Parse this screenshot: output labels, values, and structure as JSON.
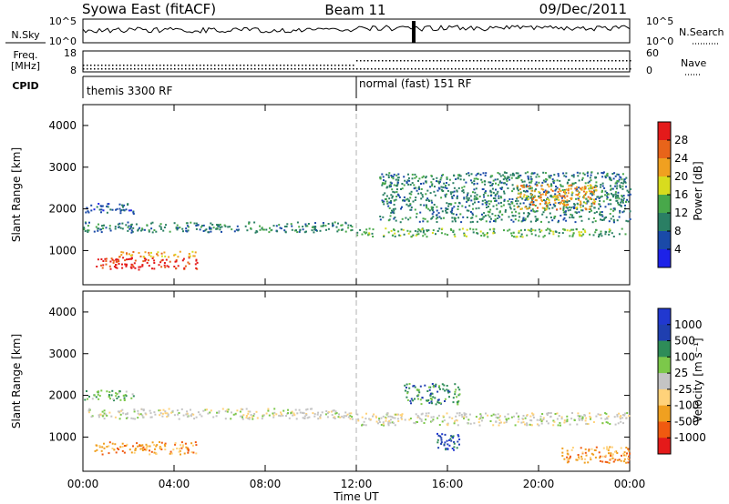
{
  "header": {
    "title": "Syowa East (fitACF)",
    "beam": "Beam 11",
    "date": "09/Dec/2011"
  },
  "status_panels": {
    "noise_left_label": "N.Sky",
    "noise_right_label": "N.Search",
    "noise_ticks_left": [
      "10^5",
      "10^0"
    ],
    "noise_ticks_right": [
      "10^5",
      "10^0"
    ],
    "freq_label_line1": "Freq.",
    "freq_label_line2": "[MHz]",
    "freq_ticks": [
      "18",
      "8"
    ],
    "nave_label": "Nave",
    "nave_ticks": [
      "60",
      "0"
    ],
    "cpid_label": "CPID",
    "cpid_modes": [
      {
        "name": "themis 3300 RF",
        "start_hour": 0
      },
      {
        "name": "normal (fast) 151 RF",
        "start_hour": 12
      }
    ]
  },
  "chart_data": [
    {
      "type": "heatmap",
      "title": "",
      "xlabel": "",
      "ylabel": "Slant Range [km]",
      "xlim": [
        0,
        24
      ],
      "ylim": [
        180,
        4500
      ],
      "x_ticks": [
        "00:00",
        "04:00",
        "08:00",
        "12:00",
        "16:00",
        "20:00",
        "00:00"
      ],
      "y_ticks": [
        "1000",
        "2000",
        "3000",
        "4000"
      ],
      "colorbar": {
        "label": "Power [dB]",
        "ticks": [
          "28",
          "24",
          "20",
          "16",
          "12",
          "8",
          "4"
        ],
        "colors": [
          "#1d22e8",
          "#1a4aa8",
          "#2a7f64",
          "#48a84a",
          "#d8dc1e",
          "#f0a020",
          "#e8641a",
          "#e41a1a"
        ]
      },
      "features": [
        {
          "t0": 0.0,
          "t1": 11.8,
          "r0": 1450,
          "r1": 1700,
          "level": 2
        },
        {
          "t0": 0.0,
          "t1": 2.2,
          "r0": 1900,
          "r1": 2150,
          "level": 1
        },
        {
          "t0": 0.5,
          "t1": 5.0,
          "r0": 560,
          "r1": 850,
          "level": 7
        },
        {
          "t0": 1.5,
          "t1": 5.0,
          "r0": 860,
          "r1": 1000,
          "level": 5
        },
        {
          "t0": 12.0,
          "t1": 24.0,
          "r0": 1350,
          "r1": 1550,
          "level": 3
        },
        {
          "t0": 13.0,
          "t1": 24.0,
          "r0": 1700,
          "r1": 2900,
          "level": 2
        },
        {
          "t0": 19.0,
          "t1": 22.5,
          "r0": 2000,
          "r1": 2600,
          "level": 5
        }
      ]
    },
    {
      "type": "heatmap",
      "title": "",
      "xlabel": "Time UT",
      "ylabel": "Slant Range [km]",
      "xlim": [
        0,
        24
      ],
      "ylim": [
        180,
        4500
      ],
      "x_ticks": [
        "00:00",
        "04:00",
        "08:00",
        "12:00",
        "16:00",
        "20:00",
        "00:00"
      ],
      "y_ticks": [
        "1000",
        "2000",
        "3000",
        "4000"
      ],
      "colorbar": {
        "label": "Velocity [m s⁻¹]",
        "ticks": [
          "1000",
          "500",
          "100",
          "25",
          "-25",
          "-100",
          "-500",
          "-1000"
        ],
        "colors": [
          "#e41a1a",
          "#f05a10",
          "#f0a020",
          "#ffd27a",
          "#c4c4c4",
          "#7cc84a",
          "#2e8c58",
          "#1f3fb0",
          "#2138d0"
        ]
      },
      "features": [
        {
          "t0": 0.0,
          "t1": 11.8,
          "r0": 1450,
          "r1": 1700,
          "level": 4
        },
        {
          "t0": 0.5,
          "t1": 5.0,
          "r0": 600,
          "r1": 900,
          "level": 2
        },
        {
          "t0": 0.0,
          "t1": 2.2,
          "r0": 1900,
          "r1": 2150,
          "level": 5
        },
        {
          "t0": 12.0,
          "t1": 24.0,
          "r0": 1300,
          "r1": 1600,
          "level": 4
        },
        {
          "t0": 14.0,
          "t1": 16.5,
          "r0": 1800,
          "r1": 2300,
          "level": 6
        },
        {
          "t0": 15.5,
          "t1": 16.5,
          "r0": 700,
          "r1": 1100,
          "level": 7
        },
        {
          "t0": 21.0,
          "t1": 24.0,
          "r0": 400,
          "r1": 800,
          "level": 2
        }
      ]
    }
  ]
}
